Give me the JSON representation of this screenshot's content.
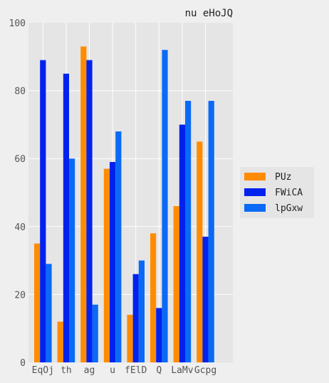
{
  "chart_data": {
    "type": "bar",
    "title": "nu eHoJQ",
    "xlabel": "",
    "ylabel": "",
    "categories": [
      "EqOj",
      "th",
      "ag",
      "u",
      "fElD",
      "Q",
      "LaMv",
      "Gcpg"
    ],
    "series": [
      {
        "name": "PUz",
        "color": "#ff8c00",
        "values": [
          35,
          12,
          93,
          57,
          14,
          38,
          46,
          65
        ]
      },
      {
        "name": "FWiCA",
        "color": "#0022ee",
        "values": [
          89,
          85,
          89,
          59,
          26,
          16,
          70,
          37
        ]
      },
      {
        "name": "lpGxw",
        "color": "#0a6af5",
        "values": [
          29,
          60,
          17,
          68,
          30,
          92,
          77,
          77
        ]
      }
    ],
    "ylim": [
      0,
      100
    ],
    "yticks": [
      0,
      20,
      40,
      60,
      80,
      100
    ],
    "grid": true,
    "legend_position": "right"
  }
}
